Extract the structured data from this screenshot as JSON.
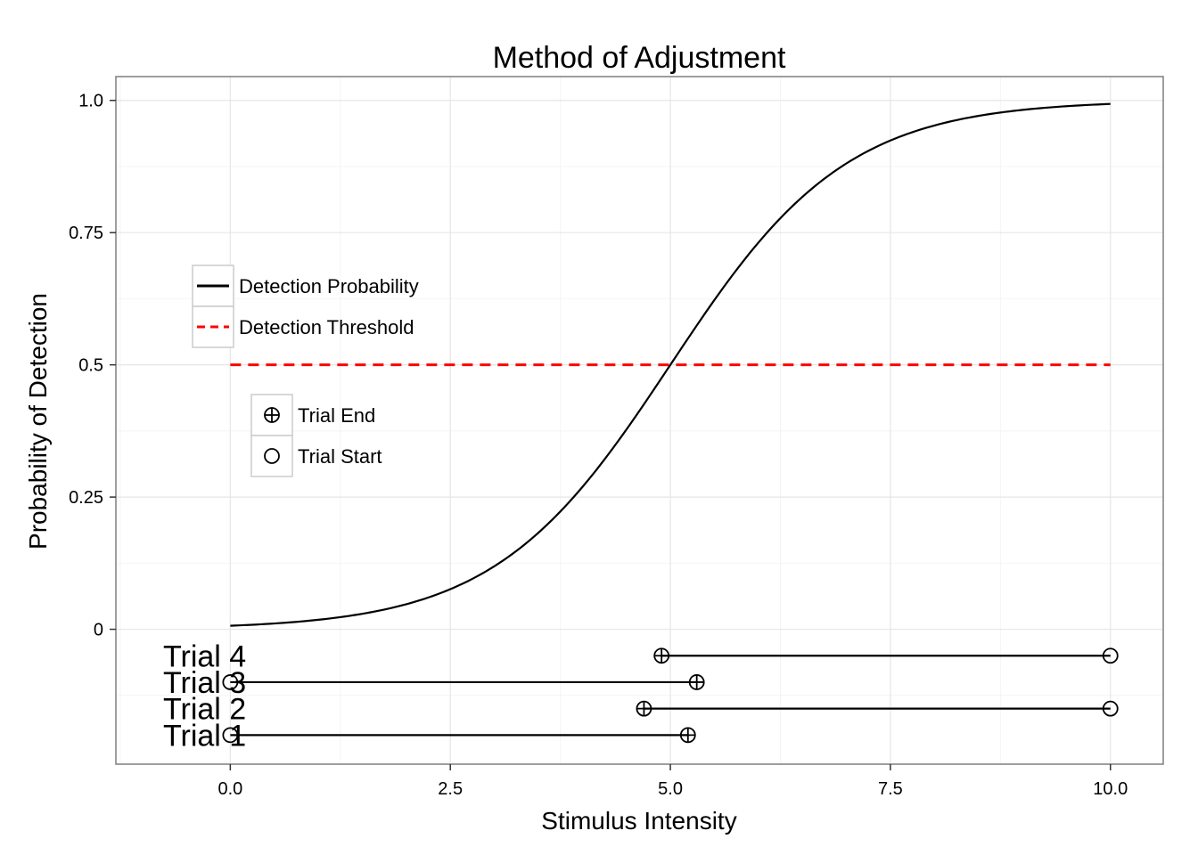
{
  "chart_data": {
    "type": "line",
    "title": "Method of Adjustment",
    "xlabel": "Stimulus Intensity",
    "ylabel": "Probability of Detection",
    "xlim": [
      -1.3,
      10.6
    ],
    "ylim": [
      -0.255,
      1.045
    ],
    "x_ticks": [
      0,
      2.5,
      5,
      7.5,
      10
    ],
    "x_tick_labels": [
      "0.0",
      "2.5",
      "5.0",
      "7.5",
      "10.0"
    ],
    "y_ticks": [
      0,
      0.25,
      0.5,
      0.75,
      1
    ],
    "y_tick_labels": [
      "0",
      "0.25",
      "0.5",
      "0.75",
      "1.0"
    ],
    "grid": true,
    "curve": {
      "name": "Detection Probability",
      "function": "logistic",
      "midpoint": 5,
      "slope": 1,
      "x_range": [
        0,
        10
      ],
      "color": "#000000"
    },
    "threshold": {
      "name": "Detection Threshold",
      "y": 0.5,
      "x_range": [
        0,
        10
      ],
      "color": "#ff0000",
      "style": "dashed"
    },
    "trials": [
      {
        "label": "Trial 4",
        "y": -0.05,
        "start": 10,
        "end": 4.9
      },
      {
        "label": "Trial 3",
        "y": -0.1,
        "start": 0,
        "end": 5.3
      },
      {
        "label": "Trial 2",
        "y": -0.15,
        "start": 10,
        "end": 4.7
      },
      {
        "label": "Trial 1",
        "y": -0.2,
        "start": 0,
        "end": 5.2
      }
    ],
    "legend_lines": [
      {
        "label": "Detection Probability",
        "style": "solid",
        "color": "#000000"
      },
      {
        "label": "Detection Threshold",
        "style": "dashed",
        "color": "#ff0000"
      }
    ],
    "legend_points": [
      {
        "label": "Trial End",
        "shape": "circle-plus"
      },
      {
        "label": "Trial Start",
        "shape": "circle"
      }
    ],
    "legend_placement": "inside-left"
  }
}
